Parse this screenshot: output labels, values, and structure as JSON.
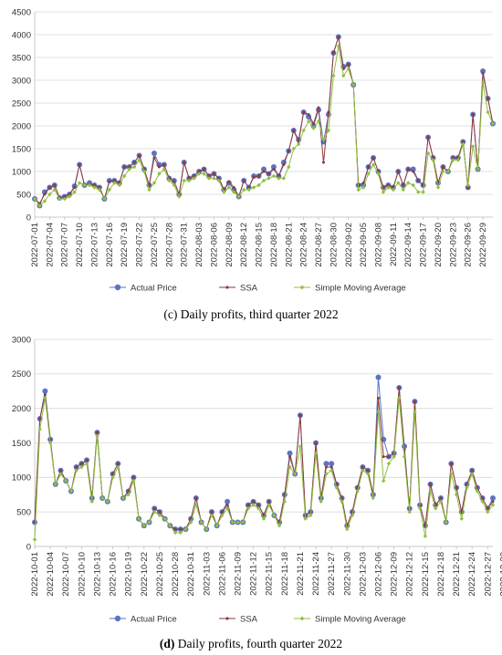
{
  "chart_data": [
    {
      "type": "line",
      "caption_label": "(c)",
      "caption_text": " Daily profits, third quarter 2022",
      "ylim": [
        0,
        4500
      ],
      "yticks": [
        0,
        500,
        1000,
        1500,
        2000,
        2500,
        3000,
        3500,
        4000,
        4500
      ],
      "grid": true,
      "legend_position": "bottom",
      "xtick_labels": [
        "2022-07-01",
        "2022-07-04",
        "2022-07-07",
        "2022-07-10",
        "2022-07-13",
        "2022-07-16",
        "2022-07-19",
        "2022-07-22",
        "2022-07-25",
        "2022-07-28",
        "2022-07-31",
        "2022-08-03",
        "2022-08-06",
        "2022-08-09",
        "2022-08-12",
        "2022-08-15",
        "2022-08-18",
        "2022-08-21",
        "2022-08-24",
        "2022-08-27",
        "2022-08-30",
        "2022-09-02",
        "2022-09-05",
        "2022-09-08",
        "2022-09-11",
        "2022-09-14",
        "2022-09-17",
        "2022-09-20",
        "2022-09-23",
        "2022-09-26",
        "2022-09-29"
      ],
      "series": [
        {
          "name": "Actual Price",
          "color": "#5b72c6",
          "marker": "circle",
          "values": [
            400,
            250,
            550,
            650,
            700,
            420,
            450,
            500,
            680,
            1150,
            700,
            750,
            700,
            650,
            400,
            800,
            800,
            750,
            1100,
            1100,
            1200,
            1350,
            1050,
            700,
            1400,
            1150,
            1150,
            850,
            800,
            500,
            1200,
            850,
            900,
            1000,
            1050,
            900,
            950,
            850,
            600,
            750,
            600,
            450,
            800,
            650,
            900,
            900,
            1050,
            950,
            1100,
            900,
            1200,
            1450,
            1900,
            1700,
            2300,
            2200,
            2000,
            2350,
            1650,
            2250,
            3600,
            3950,
            3300,
            3350,
            2900,
            700,
            700,
            1100,
            1300,
            1000,
            650,
            700,
            650,
            1000,
            700,
            1050,
            1050,
            800,
            700,
            1750,
            1300,
            750,
            1100,
            1000,
            1300,
            1300,
            1650,
            650,
            2250,
            1050,
            3200,
            2600,
            2050
          ]
        },
        {
          "name": "SSA",
          "color": "#8c3a3a",
          "marker": "dot",
          "values": [
            400,
            300,
            500,
            650,
            700,
            420,
            450,
            500,
            650,
            1150,
            700,
            720,
            700,
            650,
            400,
            780,
            800,
            750,
            1100,
            1100,
            1200,
            1350,
            1050,
            700,
            1300,
            1100,
            1150,
            850,
            780,
            500,
            1200,
            850,
            900,
            1000,
            1050,
            900,
            950,
            850,
            600,
            780,
            650,
            450,
            800,
            650,
            880,
            900,
            1000,
            950,
            1050,
            900,
            1150,
            1450,
            1900,
            1650,
            2300,
            2250,
            2050,
            2400,
            1200,
            2300,
            3600,
            3950,
            3250,
            3350,
            2900,
            700,
            750,
            1100,
            1300,
            1000,
            650,
            700,
            650,
            1000,
            700,
            1050,
            1000,
            800,
            700,
            1750,
            1300,
            750,
            1100,
            1000,
            1300,
            1300,
            1650,
            650,
            2250,
            1050,
            3150,
            2600,
            2050
          ]
        },
        {
          "name": "Simple Moving Average",
          "color": "#90c040",
          "marker": "diamond",
          "values": [
            400,
            250,
            350,
            500,
            600,
            400,
            400,
            450,
            550,
            750,
            700,
            700,
            650,
            600,
            400,
            600,
            750,
            700,
            900,
            1050,
            1100,
            1250,
            1000,
            600,
            750,
            950,
            1050,
            800,
            700,
            450,
            800,
            800,
            850,
            950,
            950,
            850,
            850,
            800,
            550,
            650,
            550,
            450,
            600,
            600,
            650,
            700,
            800,
            850,
            900,
            850,
            850,
            1100,
            1500,
            1600,
            1900,
            2100,
            1950,
            2100,
            1700,
            1900,
            3100,
            3750,
            3100,
            3250,
            2900,
            600,
            650,
            950,
            1150,
            950,
            550,
            650,
            600,
            750,
            600,
            750,
            700,
            550,
            550,
            1400,
            1250,
            650,
            1000,
            1000,
            1250,
            1250,
            1600,
            700,
            1550,
            1050,
            2950,
            2300,
            2050
          ]
        }
      ]
    },
    {
      "type": "line",
      "caption_label": "(d)",
      "caption_text": " Daily profits, fourth quarter 2022",
      "ylim": [
        0,
        3000
      ],
      "yticks": [
        0,
        500,
        1000,
        1500,
        2000,
        2500,
        3000
      ],
      "grid": true,
      "legend_position": "bottom",
      "xtick_labels": [
        "2022-10-01",
        "2022-10-04",
        "2022-10-07",
        "2022-10-10",
        "2022-10-13",
        "2022-10-16",
        "2022-10-19",
        "2022-10-22",
        "2022-10-25",
        "2022-10-28",
        "2022-10-31",
        "2022-11-03",
        "2022-11-06",
        "2022-11-09",
        "2022-11-12",
        "2022-11-15",
        "2022-11-18",
        "2022-11-21",
        "2022-11-24",
        "2022-11-27",
        "2022-11-30",
        "2022-12-03",
        "2022-12-06",
        "2022-12-09",
        "2022-12-12",
        "2022-12-15",
        "2022-12-18",
        "2022-12-21",
        "2022-12-24",
        "2022-12-27",
        "2022-12-30"
      ],
      "series": [
        {
          "name": "Actual Price",
          "color": "#5b72c6",
          "marker": "circle",
          "values": [
            350,
            1850,
            2250,
            1550,
            900,
            1100,
            950,
            800,
            1150,
            1200,
            1250,
            700,
            1650,
            700,
            650,
            1050,
            1200,
            700,
            800,
            1000,
            400,
            300,
            350,
            550,
            500,
            400,
            300,
            250,
            250,
            250,
            400,
            700,
            350,
            250,
            500,
            300,
            500,
            650,
            350,
            350,
            350,
            600,
            650,
            600,
            450,
            650,
            450,
            350,
            750,
            1350,
            1050,
            1900,
            450,
            500,
            1500,
            700,
            1200,
            1200,
            900,
            700,
            300,
            500,
            850,
            1150,
            1100,
            750,
            2450,
            1550,
            1300,
            1350,
            2300,
            1450,
            550,
            2100,
            600,
            300,
            900,
            600,
            700,
            350,
            1200,
            850,
            500,
            900,
            1100,
            850,
            700,
            550,
            700
          ]
        },
        {
          "name": "SSA",
          "color": "#8c3a3a",
          "marker": "dot",
          "values": [
            350,
            1850,
            2200,
            1550,
            900,
            1100,
            950,
            800,
            1150,
            1200,
            1250,
            700,
            1650,
            700,
            650,
            1050,
            1200,
            700,
            800,
            1000,
            400,
            300,
            350,
            550,
            500,
            400,
            300,
            250,
            250,
            250,
            400,
            700,
            350,
            250,
            500,
            300,
            500,
            600,
            350,
            350,
            350,
            600,
            650,
            600,
            450,
            650,
            450,
            350,
            750,
            1300,
            1050,
            1900,
            450,
            500,
            1500,
            700,
            1150,
            1150,
            900,
            700,
            300,
            500,
            850,
            1150,
            1100,
            750,
            2150,
            1300,
            1300,
            1350,
            2300,
            1400,
            550,
            2100,
            600,
            300,
            900,
            600,
            700,
            350,
            1200,
            850,
            500,
            900,
            1100,
            850,
            700,
            550,
            650
          ]
        },
        {
          "name": "Simple Moving Average",
          "color": "#90c040",
          "marker": "diamond",
          "values": [
            100,
            1700,
            2150,
            1500,
            900,
            1050,
            950,
            800,
            1100,
            1150,
            1200,
            650,
            1600,
            700,
            650,
            1000,
            1150,
            700,
            750,
            950,
            400,
            300,
            350,
            500,
            450,
            400,
            300,
            200,
            200,
            250,
            350,
            600,
            350,
            250,
            450,
            300,
            450,
            550,
            350,
            350,
            350,
            550,
            600,
            550,
            400,
            600,
            450,
            300,
            650,
            1150,
            1050,
            1450,
            400,
            450,
            1350,
            650,
            1050,
            1100,
            850,
            650,
            250,
            450,
            800,
            1100,
            1050,
            700,
            1950,
            950,
            1200,
            1300,
            2150,
            1300,
            500,
            1950,
            550,
            150,
            800,
            550,
            650,
            350,
            1050,
            750,
            400,
            850,
            1050,
            800,
            650,
            500,
            600
          ]
        }
      ]
    }
  ],
  "legend": [
    {
      "label": "Actual Price",
      "color": "#5b72c6",
      "marker": "circle"
    },
    {
      "label": "SSA",
      "color": "#8c3a3a",
      "marker": "dot"
    },
    {
      "label": "Simple Moving Average",
      "color": "#90c040",
      "marker": "diamond"
    }
  ]
}
